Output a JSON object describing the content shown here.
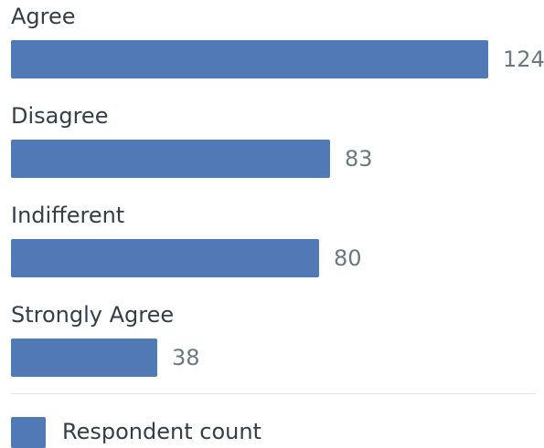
{
  "chart_data": {
    "type": "bar",
    "orientation": "horizontal",
    "categories": [
      "Agree",
      "Disagree",
      "Indifferent",
      "Strongly Agree"
    ],
    "series": [
      {
        "name": "Respondent count",
        "values": [
          124,
          83,
          80,
          38
        ],
        "color": "#5079b5"
      }
    ],
    "data_labels": [
      "124",
      "83",
      "80",
      "38"
    ],
    "xlim": [
      0,
      124
    ],
    "grid": false,
    "legend": {
      "position": "bottom-left",
      "label": "Respondent count"
    }
  }
}
